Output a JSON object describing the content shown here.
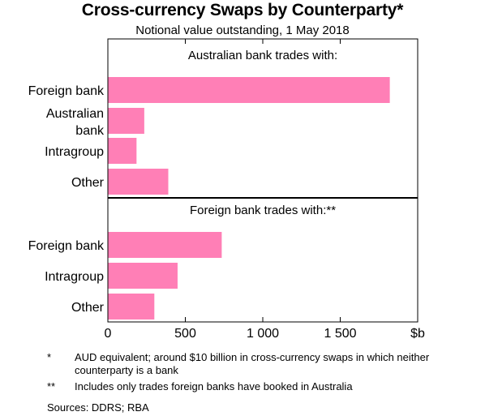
{
  "title": "Cross-currency Swaps by Counterparty*",
  "subtitle": "Notional value outstanding, 1 May 2018",
  "chart_data": {
    "type": "bar",
    "orientation": "horizontal",
    "bar_color": "#ff7fb6",
    "x_ticks": [
      0,
      500,
      1000,
      1500
    ],
    "x_tick_labels": [
      "0",
      "500",
      "1 000",
      "1 500"
    ],
    "x_unit": "$b",
    "xlim": [
      0,
      2000
    ],
    "grid": false,
    "panels": [
      {
        "title": "Australian bank trades with:",
        "categories": [
          "Foreign bank",
          "Australian bank",
          "Intragroup",
          "Other"
        ],
        "category_lines": [
          [
            "Foreign bank"
          ],
          [
            "Australian",
            "bank"
          ],
          [
            "Intragroup"
          ],
          [
            "Other"
          ]
        ],
        "values": [
          1820,
          235,
          185,
          390
        ]
      },
      {
        "title": "Foreign bank trades with:**",
        "categories": [
          "Foreign bank",
          "Intragroup",
          "Other"
        ],
        "category_lines": [
          [
            "Foreign bank"
          ],
          [
            "Intragroup"
          ],
          [
            "Other"
          ]
        ],
        "values": [
          735,
          450,
          300
        ]
      }
    ]
  },
  "notes": [
    {
      "mark": "*",
      "text": "AUD equivalent; around $10 billion in cross-currency swaps in which neither counterparty is a bank"
    },
    {
      "mark": "**",
      "text": "Includes only trades foreign banks have booked in Australia"
    }
  ],
  "sources": "Sources:  DDRS; RBA"
}
